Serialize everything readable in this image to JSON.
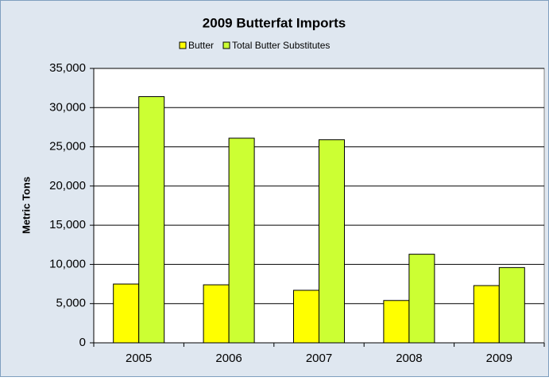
{
  "chart_data": {
    "type": "bar",
    "title": "2009 Butterfat Imports",
    "y_label": "Metric Tons",
    "categories": [
      "2005",
      "2006",
      "2007",
      "2008",
      "2009"
    ],
    "series": [
      {
        "name": "Butter",
        "color": "#ffff00",
        "values": [
          7500,
          7400,
          6700,
          5400,
          7300
        ]
      },
      {
        "name": "Total Butter Substitutes",
        "color": "#ccff33",
        "values": [
          31400,
          26100,
          25900,
          11300,
          9600
        ]
      }
    ],
    "ylim": [
      0,
      35000
    ],
    "yticks": [
      0,
      {
        "value": 5000,
        "label": "5,000"
      },
      {
        "value": 10000,
        "label": "10,000"
      },
      {
        "value": 15000,
        "label": "15,000"
      },
      {
        "value": 20000,
        "label": "20,000"
      },
      {
        "value": 25000,
        "label": "25,000"
      },
      {
        "value": 30000,
        "label": "30,000"
      },
      {
        "value": 35000,
        "label": "35,000"
      }
    ],
    "grid": true,
    "legend": "top"
  }
}
